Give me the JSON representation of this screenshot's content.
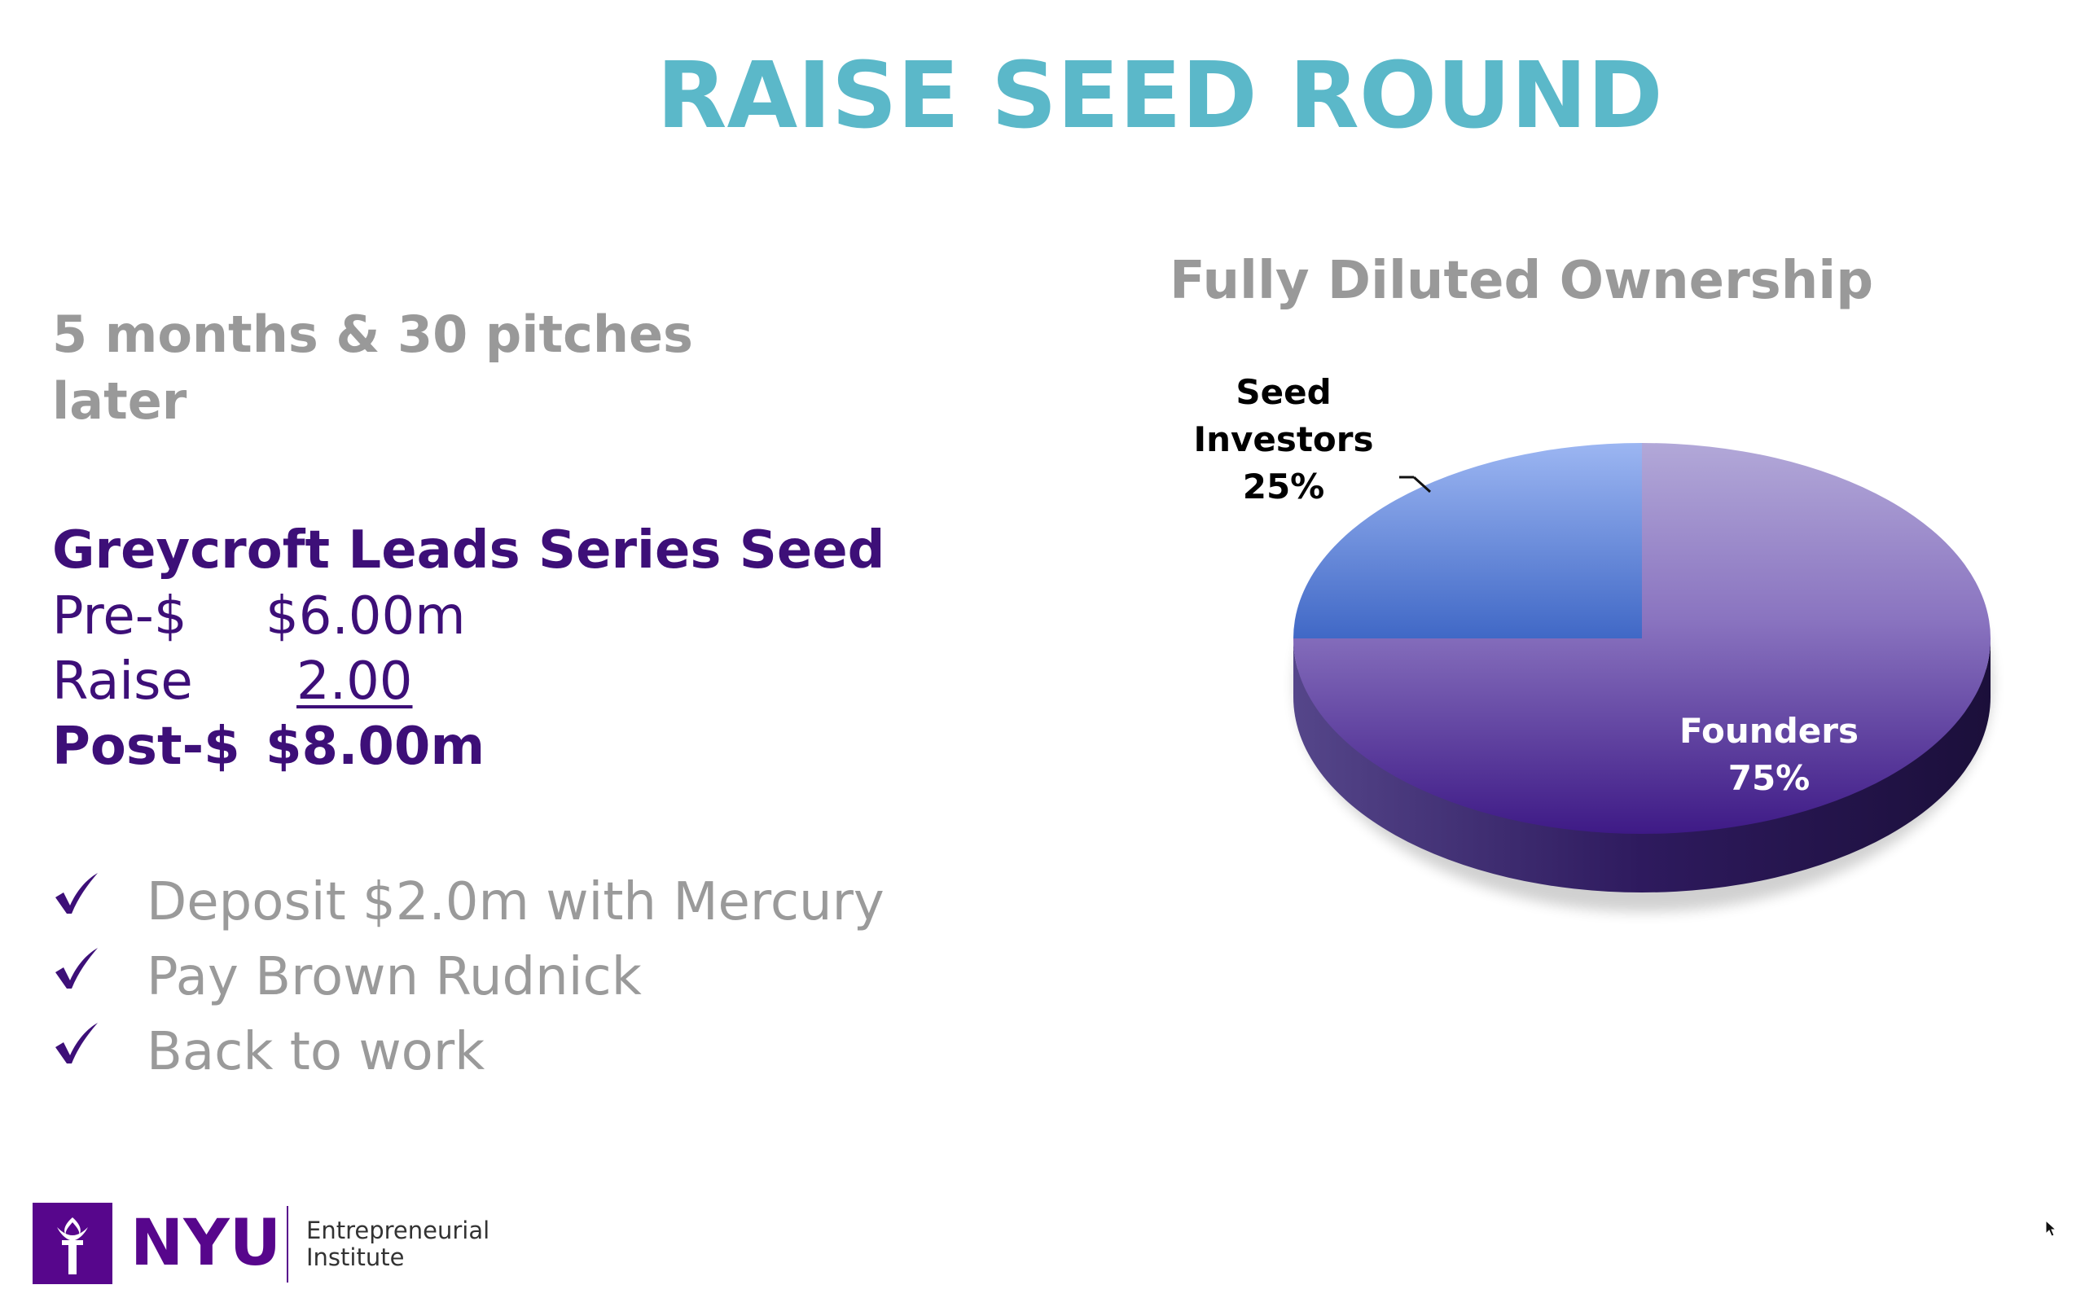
{
  "slide": {
    "title": "RAISE SEED ROUND",
    "subhead": "5 months & 30 pitches later"
  },
  "deal": {
    "heading": "Greycroft Leads Series Seed",
    "pre_label": "Pre-$",
    "pre_value": "$6.00m",
    "raise_label": "Raise",
    "raise_value": "2.00",
    "post_label": "Post-$",
    "post_value": "$8.00m"
  },
  "checklist": [
    {
      "text": "Deposit $2.0m with Mercury",
      "icon": "checkmark-icon"
    },
    {
      "text": "Pay Brown Rudnick",
      "icon": "checkmark-icon"
    },
    {
      "text": "Back to work",
      "icon": "checkmark-icon"
    }
  ],
  "chart_data": {
    "type": "pie",
    "title": "Fully Diluted Ownership",
    "style": "3d",
    "slices": [
      {
        "label_line1": "Seed",
        "label_line2": "Investors",
        "value": 25,
        "value_label": "25%",
        "color": "#4b74cf"
      },
      {
        "label_line1": "Founders",
        "label_line2": "",
        "value": 75,
        "value_label": "75%",
        "color": "#5a2d8f"
      }
    ]
  },
  "footer": {
    "logo_text": "NYU",
    "institute_line1": "Entrepreneurial",
    "institute_line2": "Institute",
    "logo_icon": "torch-icon",
    "brand_color": "#57068c"
  },
  "colors": {
    "title": "#5bb8c9",
    "deal_text": "#3d0f78",
    "muted_text": "#999999"
  }
}
